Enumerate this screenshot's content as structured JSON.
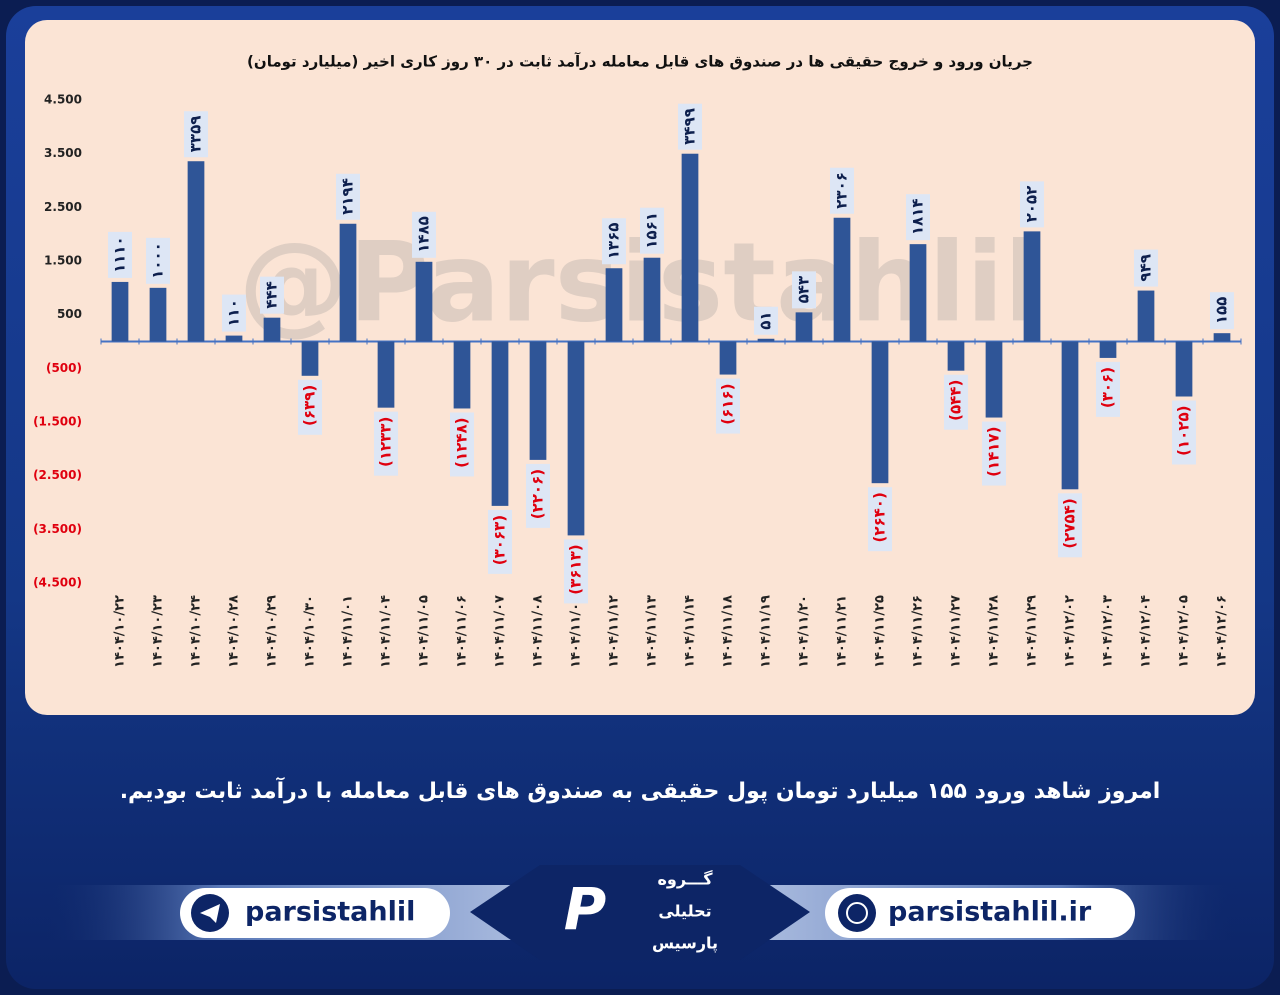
{
  "chart_data": {
    "type": "bar",
    "title": "جریان ورود و خروج حقیقی ها در صندوق های قابل معامله درآمد ثابت در ۳۰ روز کاری اخیر (میلیارد تومان)",
    "watermark": "@Parsistahlil",
    "categories": [
      "۱۴۰۴/۱۰/۲۲",
      "۱۴۰۴/۱۰/۲۳",
      "۱۴۰۴/۱۰/۲۴",
      "۱۴۰۴/۱۰/۲۸",
      "۱۴۰۴/۱۰/۲۹",
      "۱۴۰۴/۱۰/۳۰",
      "۱۴۰۴/۱۱/۰۱",
      "۱۴۰۴/۱۱/۰۴",
      "۱۴۰۴/۱۱/۰۵",
      "۱۴۰۴/۱۱/۰۶",
      "۱۴۰۴/۱۱/۰۷",
      "۱۴۰۴/۱۱/۰۸",
      "۱۴۰۴/۱۱/۰۹",
      "۱۴۰۴/۱۱/۱۲",
      "۱۴۰۴/۱۱/۱۳",
      "۱۴۰۴/۱۱/۱۴",
      "۱۴۰۴/۱۱/۱۸",
      "۱۴۰۴/۱۱/۱۹",
      "۱۴۰۴/۱۱/۲۰",
      "۱۴۰۴/۱۱/۲۱",
      "۱۴۰۴/۱۱/۲۵",
      "۱۴۰۴/۱۱/۲۶",
      "۱۴۰۴/۱۱/۲۷",
      "۱۴۰۴/۱۱/۲۸",
      "۱۴۰۴/۱۱/۲۹",
      "۱۴۰۴/۱۲/۰۲",
      "۱۴۰۴/۱۲/۰۳",
      "۱۴۰۴/۱۲/۰۴",
      "۱۴۰۴/۱۲/۰۵",
      "۱۴۰۴/۱۲/۰۶"
    ],
    "values": [
      1110,
      1000,
      3359,
      110,
      444,
      -639,
      2194,
      -1233,
      1485,
      -1248,
      -3063,
      -2206,
      -3613,
      1365,
      1561,
      3499,
      -616,
      51,
      543,
      2306,
      -2640,
      1814,
      -544,
      -1417,
      2052,
      -2754,
      -306,
      949,
      -1025,
      155
    ],
    "value_labels": [
      "۱۱۱۰",
      "۱۰۰۰",
      "۳۳۵۹",
      "۱۱۰",
      "۴۴۴",
      "(۶۳۹)",
      "۲۱۹۴",
      "(۱۲۳۳)",
      "۱۴۸۵",
      "(۱۲۴۸)",
      "(۳۰۶۳)",
      "(۲۲۰۶)",
      "(۳۶۱۳)",
      "۱۳۶۵",
      "۱۵۶۱",
      "۳۴۹۹",
      "(۶۱۶)",
      "۵۱",
      "۵۴۳",
      "۲۳۰۶",
      "(۲۶۴۰)",
      "۱۸۱۴",
      "(۵۴۴)",
      "(۱۴۱۷)",
      "۲۰۵۲",
      "(۲۷۵۴)",
      "(۳۰۶)",
      "۹۴۹",
      "(۱۰۲۵)",
      "۱۵۵"
    ],
    "color": "#2f5597",
    "label_color": "#0d1f4d",
    "negative_label_color": "#e0000f",
    "ylim": [
      -4500,
      4500
    ],
    "yticks": [
      {
        "value": 4500,
        "label": "4.500"
      },
      {
        "value": 3500,
        "label": "3.500"
      },
      {
        "value": 2500,
        "label": "2.500"
      },
      {
        "value": 1500,
        "label": "1.500"
      },
      500,
      {
        "value": -500,
        "label": "(500)"
      },
      {
        "value": -1500,
        "label": "(1.500)"
      },
      {
        "value": -2500,
        "label": "(2.500)"
      },
      {
        "value": -3500,
        "label": "(3.500)"
      },
      {
        "value": -4500,
        "label": "(4.500)"
      }
    ],
    "grid": false
  },
  "caption": "امروز شاهد ورود ۱۵۵ میلیارد تومان پول حقیقی به صندوق های قابل معامله با درآمد ثابت بودیم.",
  "footer": {
    "telegram": "parsistahlil",
    "website": "parsistahlil.ir",
    "logo_lines": [
      "گـــروه",
      "تحلیلی",
      "پارسیس"
    ]
  }
}
